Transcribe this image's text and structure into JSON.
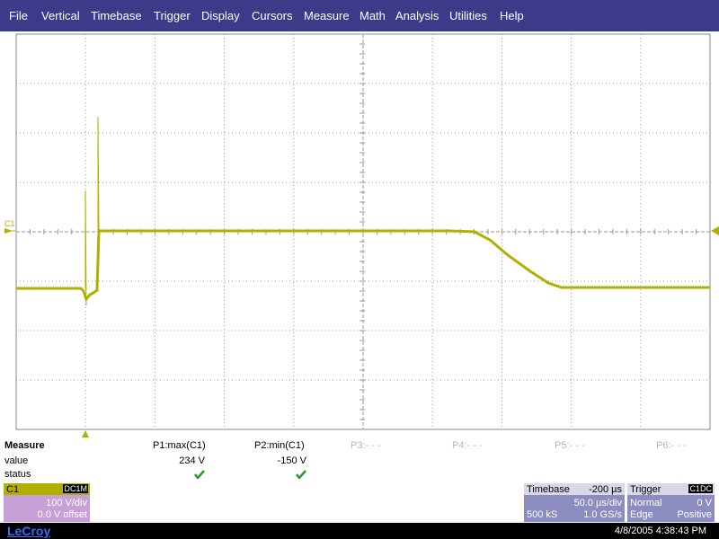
{
  "menu": [
    "File",
    "Vertical",
    "Timebase",
    "Trigger",
    "Display",
    "Cursors",
    "Measure",
    "Math",
    "Analysis",
    "Utilities",
    "Help"
  ],
  "trace_marker": "C1",
  "measure": {
    "title": "Measure",
    "row_labels": [
      "value",
      "status"
    ],
    "params": [
      {
        "name": "P1:max(C1)",
        "value": "234 V"
      },
      {
        "name": "P2:min(C1)",
        "value": "-150 V"
      },
      {
        "name": "P3:- - -"
      },
      {
        "name": "P4:- - -"
      },
      {
        "name": "P5:- - -"
      },
      {
        "name": "P6:- - -"
      }
    ]
  },
  "channel": {
    "name": "C1",
    "coupling": "DC1M",
    "scale": "100 V/div",
    "offset": "0.0 V offset"
  },
  "timebase": {
    "title": "Timebase",
    "delay": "-200 µs",
    "scale": "50.0 µs/div",
    "samples": "500 kS",
    "rate": "1.0 GS/s"
  },
  "trigger": {
    "title": "Trigger",
    "source": "C1",
    "coupling": "DC",
    "mode": "Normal",
    "level": "0 V",
    "type": "Edge",
    "slope": "Positive"
  },
  "footer": {
    "brand": "LeCroy",
    "timestamp": "4/8/2005 4:38:43 PM"
  }
}
